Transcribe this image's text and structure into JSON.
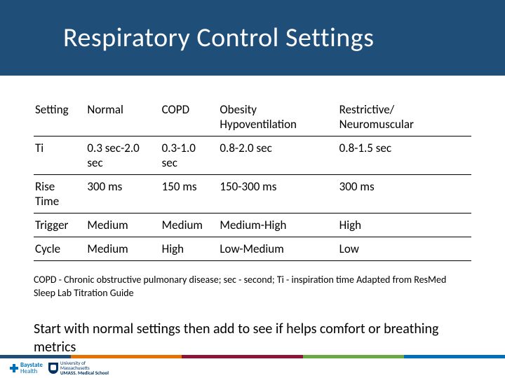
{
  "title": "Respiratory Control Settings",
  "table": {
    "columns": [
      "Setting",
      "Normal",
      "COPD",
      "Obesity Hypoventilation",
      "Restrictive/ Neuromuscular"
    ],
    "rows": [
      [
        "Ti",
        "0.3 sec-2.0 sec",
        "0.3-1.0 sec",
        "0.8-2.0 sec",
        "0.8-1.5 sec"
      ],
      [
        "Rise Time",
        "300 ms",
        "150 ms",
        "150-300 ms",
        "300 ms"
      ],
      [
        "Trigger",
        "Medium",
        "Medium",
        "Medium-High",
        "High"
      ],
      [
        "Cycle",
        "Medium",
        "High",
        "Low-Medium",
        "Low"
      ]
    ]
  },
  "footnote": "COPD - Chronic obstructive pulmonary disease; sec - second; Ti - inspiration time Adapted from ResMed Sleep Lab Titration Guide",
  "bottom_text": "Start with normal settings then add to see if helps comfort or breathing metrics",
  "footer": {
    "bar_colors": [
      "#1f4e79",
      "#e57200",
      "#8a1538",
      "#6aa843",
      "#0071b9"
    ],
    "logo1_line1": "Baystate",
    "logo1_line2": "Health",
    "logo2_line1": "University of",
    "logo2_line2": "Massachusetts",
    "logo2_line3": "UMASS. Medical School"
  },
  "colors": {
    "title_band": "#1f4e79",
    "background": "#ffffff",
    "text": "#000000"
  }
}
